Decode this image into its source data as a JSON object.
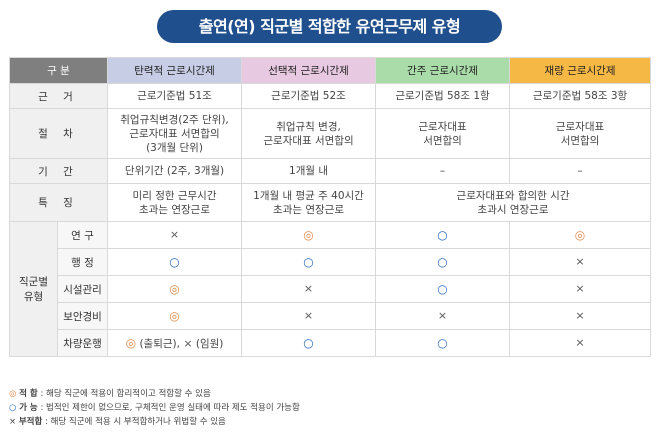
{
  "title": "출연(연) 직군별 적합한 유연근무제 유형",
  "header": {
    "gubun": "구 분",
    "flex": "탄력적 근로시간제",
    "select": "선택적 근로시간제",
    "indirect": "간주 근로시간제",
    "discretion": "재량 근로시간제"
  },
  "rows": {
    "basis": {
      "label": "근 거",
      "flex": "근로기준법 51조",
      "select": "근로기준법 52조",
      "indirect": "근로기준법 58조 1항",
      "discretion": "근로기준법 58조 3항"
    },
    "procedure": {
      "label": "절 차",
      "flex_1": "취업규칙변경(2주 단위),",
      "flex_2": "근로자대표 서면합의",
      "flex_3": "(3개월 단위)",
      "select_1": "취업규칙 변경,",
      "select_2": "근로자대표 서면합의",
      "indirect_1": "근로자대표",
      "indirect_2": "서면합의",
      "discretion_1": "근로자대표",
      "discretion_2": "서면합의"
    },
    "period": {
      "label": "기 간",
      "flex": "단위기간 (2주, 3개월)",
      "select": "1개월 내",
      "indirect": "–",
      "discretion": "–"
    },
    "feature": {
      "label": "특 징",
      "flex_1": "미리 정한 근무시간",
      "flex_2": "초과는 연장근로",
      "select_1": "1개월 내 평균 주 40시간",
      "select_2": "초과는 연장근로",
      "merged_1": "근로자대표와 합의한 시간",
      "merged_2": "초과시 연장근로"
    }
  },
  "job_group": {
    "label_1": "직군별",
    "label_2": "유형",
    "jobs": [
      {
        "name": "연 구",
        "flex": "×",
        "select": "◎",
        "indirect": "○",
        "discretion": "◎"
      },
      {
        "name": "행 정",
        "flex": "○",
        "select": "○",
        "indirect": "○",
        "discretion": "×"
      },
      {
        "name": "시설관리",
        "flex": "◎",
        "select": "×",
        "indirect": "○",
        "discretion": "×"
      },
      {
        "name": "보안경비",
        "flex": "◎",
        "select": "×",
        "indirect": "×",
        "discretion": "×"
      },
      {
        "name": "차량운행",
        "flex_a": "◎",
        "flex_a_text": "(출퇴근),",
        "flex_b": "×",
        "flex_b_text": "(임원)",
        "select": "○",
        "indirect": "○",
        "discretion": "×"
      }
    ]
  },
  "legend": [
    {
      "symbol": "◎",
      "key": "적  합",
      "text": ": 해당 직군에 적용이 합리적이고 적합할 수 있음"
    },
    {
      "symbol": "○",
      "key": "가  능",
      "text": ": 법적인 제한이 없으므로, 구체적인 운영 실태에 따라 제도 적용이 가능함"
    },
    {
      "symbol": "×",
      "key": "부적합",
      "text": ": 해당 직군에 적용 시 부적합하거나 위법할 수 있음"
    }
  ],
  "colors": {
    "title_bg": "#1f4f8c",
    "header_gubun": "#7f7f7f",
    "header_flex": "#c8cde6",
    "header_select": "#e8c9e2",
    "header_indirect": "#a9dca8",
    "header_discretion": "#f6b845",
    "symbol_good": "#e0894a",
    "symbol_possible": "#2f6fbf"
  }
}
